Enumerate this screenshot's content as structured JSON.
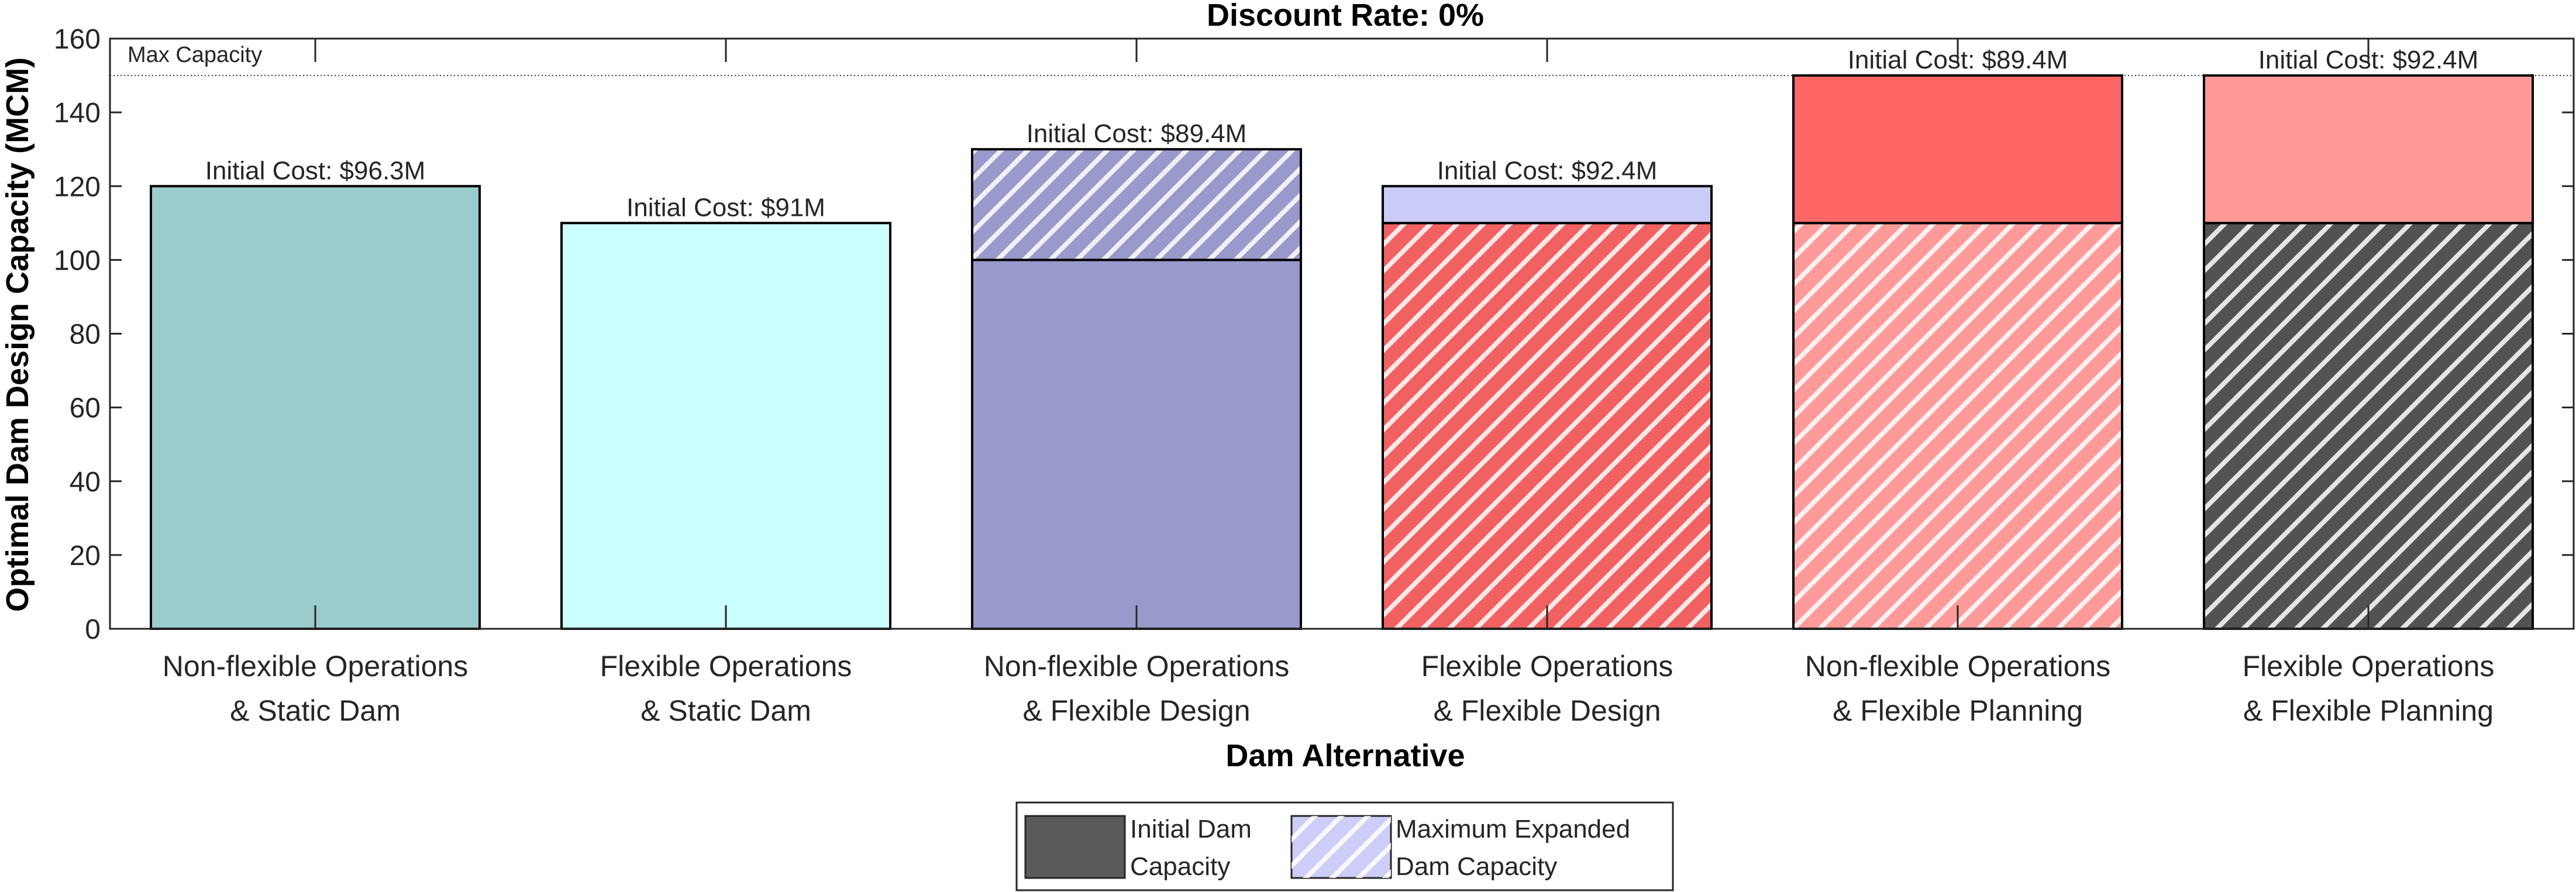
{
  "chart_data": {
    "type": "bar",
    "title": "Discount Rate: 0%",
    "xlabel": "Dam Alternative",
    "ylabel": "Optimal Dam Design Capacity (MCM)",
    "ylim": [
      0,
      160
    ],
    "yticks": [
      0,
      20,
      40,
      60,
      80,
      100,
      120,
      140,
      160
    ],
    "max_capacity": {
      "value": 150,
      "label": "Max Capacity"
    },
    "categories": [
      {
        "line1": "Non-flexible Operations",
        "line2": "& Static Dam"
      },
      {
        "line1": "Flexible Operations",
        "line2": "& Static Dam"
      },
      {
        "line1": "Non-flexible Operations",
        "line2": "& Flexible Design"
      },
      {
        "line1": "Flexible Operations",
        "line2": "& Flexible Design"
      },
      {
        "line1": "Non-flexible Operations",
        "line2": "& Flexible Planning"
      },
      {
        "line1": "Flexible Operations",
        "line2": "& Flexible Planning"
      }
    ],
    "bars": [
      {
        "initial": 120,
        "expanded_max": 120,
        "label": "Initial Cost: $96.3M",
        "initial_color": "#9bcccc",
        "initial_hatched": false,
        "expansion_color": null,
        "expansion_hatched": false
      },
      {
        "initial": 110,
        "expanded_max": 110,
        "label": "Initial Cost: $91M",
        "initial_color": "#ccffff",
        "initial_hatched": false,
        "expansion_color": null,
        "expansion_hatched": false
      },
      {
        "initial": 100,
        "expanded_max": 130,
        "label": "Initial Cost: $89.4M",
        "initial_color": "#9999cc",
        "initial_hatched": false,
        "expansion_color": "#9999cc",
        "expansion_hatched": true
      },
      {
        "initial": 110,
        "expanded_max": 120,
        "label": "Initial Cost: $92.4M",
        "initial_color": "#f26161",
        "initial_hatched": true,
        "expansion_color": "#cbcbf7",
        "expansion_hatched": false
      },
      {
        "initial": 110,
        "expanded_max": 150,
        "label": "Initial Cost: $89.4M",
        "initial_color": "#ff9a9a",
        "initial_hatched": true,
        "expansion_color": "#ff6767",
        "expansion_hatched": false
      },
      {
        "initial": 110,
        "expanded_max": 150,
        "label": "Initial Cost: $92.4M",
        "initial_color": "#525252",
        "initial_hatched": true,
        "expansion_color": "#ff9999",
        "expansion_hatched": false
      }
    ],
    "legend": {
      "position": "bottom-center",
      "items": [
        {
          "line1": "Initial Dam",
          "line2": "Capacity",
          "color": "#5a5a5a",
          "hatched": false
        },
        {
          "line1": "Maximum Expanded",
          "line2": "Dam Capacity",
          "color": "#cdcdf8",
          "hatched": true
        }
      ]
    }
  }
}
